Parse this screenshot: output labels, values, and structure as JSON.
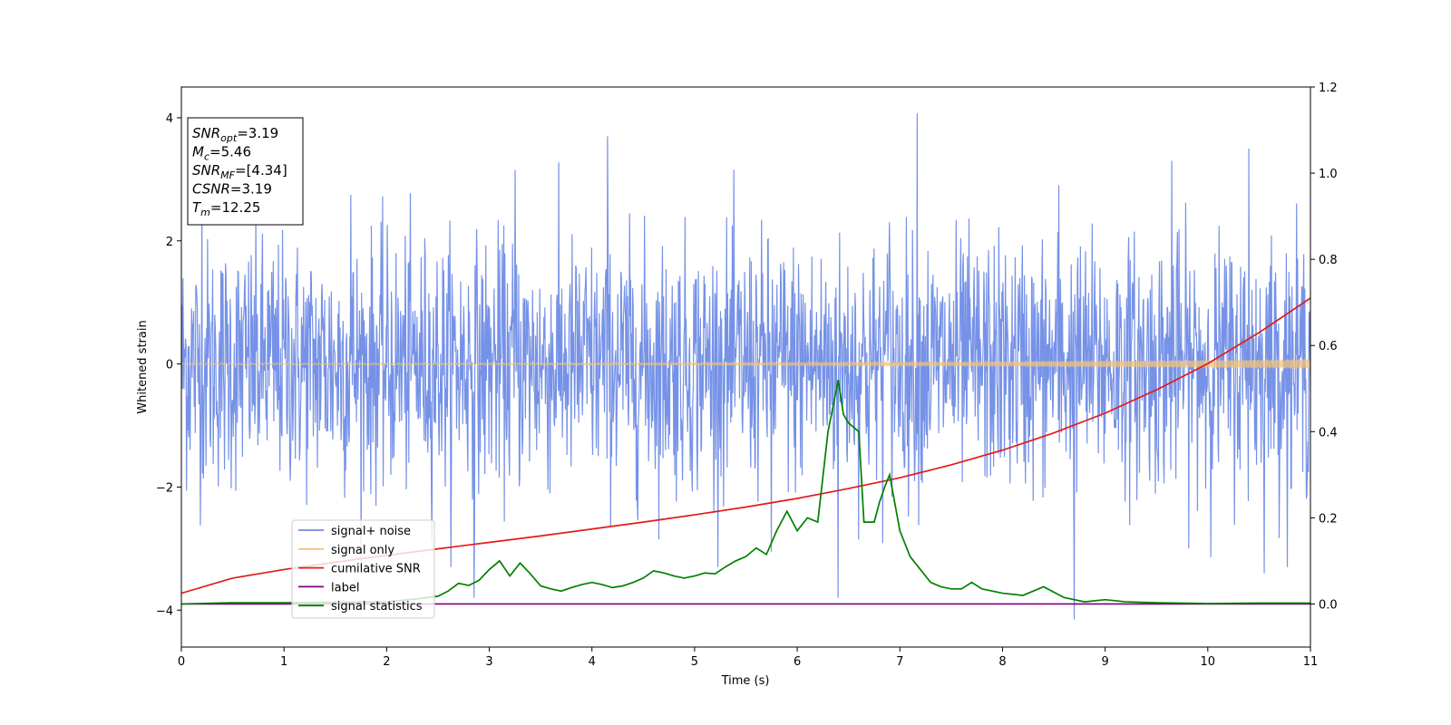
{
  "chart_data": {
    "type": "line",
    "title": "",
    "xlabel": "Time (s)",
    "ylabel": "Whitened strain",
    "y2label": "",
    "xlim": [
      0,
      11
    ],
    "ylim": [
      -4.6,
      4.5
    ],
    "y2lim": [
      -0.1,
      1.2
    ],
    "x_ticks": [
      "0",
      "1",
      "2",
      "3",
      "4",
      "5",
      "6",
      "7",
      "8",
      "9",
      "10",
      "11"
    ],
    "y_ticks": [
      "−4",
      "−2",
      "0",
      "2",
      "4"
    ],
    "y2_ticks": [
      "0.0",
      "0.2",
      "0.4",
      "0.6",
      "0.8",
      "1.0",
      "1.2"
    ],
    "grid": false,
    "legend_placement": "lower-left",
    "info_box": [
      {
        "main": "SNR",
        "sub": "opt",
        "value": "=3.19"
      },
      {
        "main": "M",
        "sub": "c",
        "value": "=5.46"
      },
      {
        "main": "SNR",
        "sub": "MF",
        "value": "=[4.34]"
      },
      {
        "main": "CSNR",
        "sub": "",
        "value": "=3.19"
      },
      {
        "main": "T",
        "sub": "m",
        "value": "=12.25"
      }
    ],
    "series": [
      {
        "name": "signal+ noise",
        "axis": "left",
        "color": "#6f8ce6",
        "style": "noise",
        "sigma": 1.0,
        "count": 2200,
        "peaks": [
          [
            0.2,
            2.7
          ],
          [
            1.65,
            2.75
          ],
          [
            3.25,
            3.15
          ],
          [
            4.15,
            3.7
          ],
          [
            5.75,
            -3.05
          ],
          [
            6.4,
            -3.8
          ],
          [
            6.9,
            2.3
          ],
          [
            7.17,
            4.07
          ],
          [
            8.7,
            -4.15
          ],
          [
            9.65,
            3.3
          ],
          [
            10.4,
            3.5
          ],
          [
            10.55,
            -3.4
          ],
          [
            2.85,
            -3.8
          ],
          [
            8.55,
            2.9
          ]
        ]
      },
      {
        "name": "signal only",
        "axis": "left",
        "color": "#f2c37a",
        "style": "chirp",
        "amp_start": 0.01,
        "amp_end": 0.08
      },
      {
        "name": "cumilative SNR",
        "axis": "right",
        "color": "#e41a1c",
        "x": [
          0,
          0.5,
          1,
          1.5,
          2,
          2.5,
          3,
          3.5,
          4,
          4.5,
          5,
          5.5,
          6,
          6.5,
          7,
          7.5,
          8,
          8.5,
          9,
          9.5,
          10,
          10.5,
          11
        ],
        "y": [
          0.025,
          0.06,
          0.08,
          0.097,
          0.113,
          0.128,
          0.143,
          0.158,
          0.174,
          0.19,
          0.207,
          0.225,
          0.245,
          0.268,
          0.293,
          0.323,
          0.357,
          0.397,
          0.443,
          0.497,
          0.558,
          0.63,
          0.71
        ]
      },
      {
        "name": "label",
        "axis": "right",
        "color": "#800080",
        "x": [
          0,
          11
        ],
        "y": [
          0,
          0
        ]
      },
      {
        "name": "signal statistics",
        "axis": "right",
        "color": "#008000",
        "x": [
          0,
          0.5,
          1,
          1.5,
          2,
          2.3,
          2.5,
          2.6,
          2.7,
          2.8,
          2.9,
          3.0,
          3.1,
          3.2,
          3.3,
          3.4,
          3.5,
          3.6,
          3.7,
          3.8,
          3.9,
          4.0,
          4.1,
          4.2,
          4.3,
          4.4,
          4.5,
          4.6,
          4.7,
          4.8,
          4.9,
          5.0,
          5.1,
          5.2,
          5.3,
          5.4,
          5.5,
          5.6,
          5.7,
          5.8,
          5.9,
          6.0,
          6.1,
          6.2,
          6.3,
          6.35,
          6.4,
          6.45,
          6.5,
          6.6,
          6.65,
          6.7,
          6.75,
          6.8,
          6.85,
          6.9,
          7.0,
          7.1,
          7.2,
          7.3,
          7.4,
          7.5,
          7.6,
          7.7,
          7.8,
          7.9,
          8.0,
          8.2,
          8.4,
          8.6,
          8.8,
          9.0,
          9.2,
          9.5,
          10.0,
          10.5,
          11
        ],
        "y": [
          0.0,
          0.003,
          0.003,
          0.004,
          0.005,
          0.012,
          0.018,
          0.03,
          0.048,
          0.043,
          0.055,
          0.08,
          0.1,
          0.065,
          0.095,
          0.07,
          0.042,
          0.035,
          0.03,
          0.038,
          0.045,
          0.05,
          0.045,
          0.038,
          0.042,
          0.05,
          0.06,
          0.077,
          0.072,
          0.065,
          0.06,
          0.065,
          0.072,
          0.07,
          0.086,
          0.1,
          0.11,
          0.13,
          0.115,
          0.17,
          0.215,
          0.17,
          0.2,
          0.19,
          0.4,
          0.46,
          0.52,
          0.44,
          0.42,
          0.4,
          0.19,
          0.19,
          0.19,
          0.235,
          0.27,
          0.3,
          0.17,
          0.11,
          0.08,
          0.05,
          0.04,
          0.035,
          0.035,
          0.05,
          0.035,
          0.03,
          0.025,
          0.02,
          0.04,
          0.015,
          0.005,
          0.01,
          0.005,
          0.003,
          0.001,
          0.002,
          0.002
        ]
      }
    ]
  }
}
